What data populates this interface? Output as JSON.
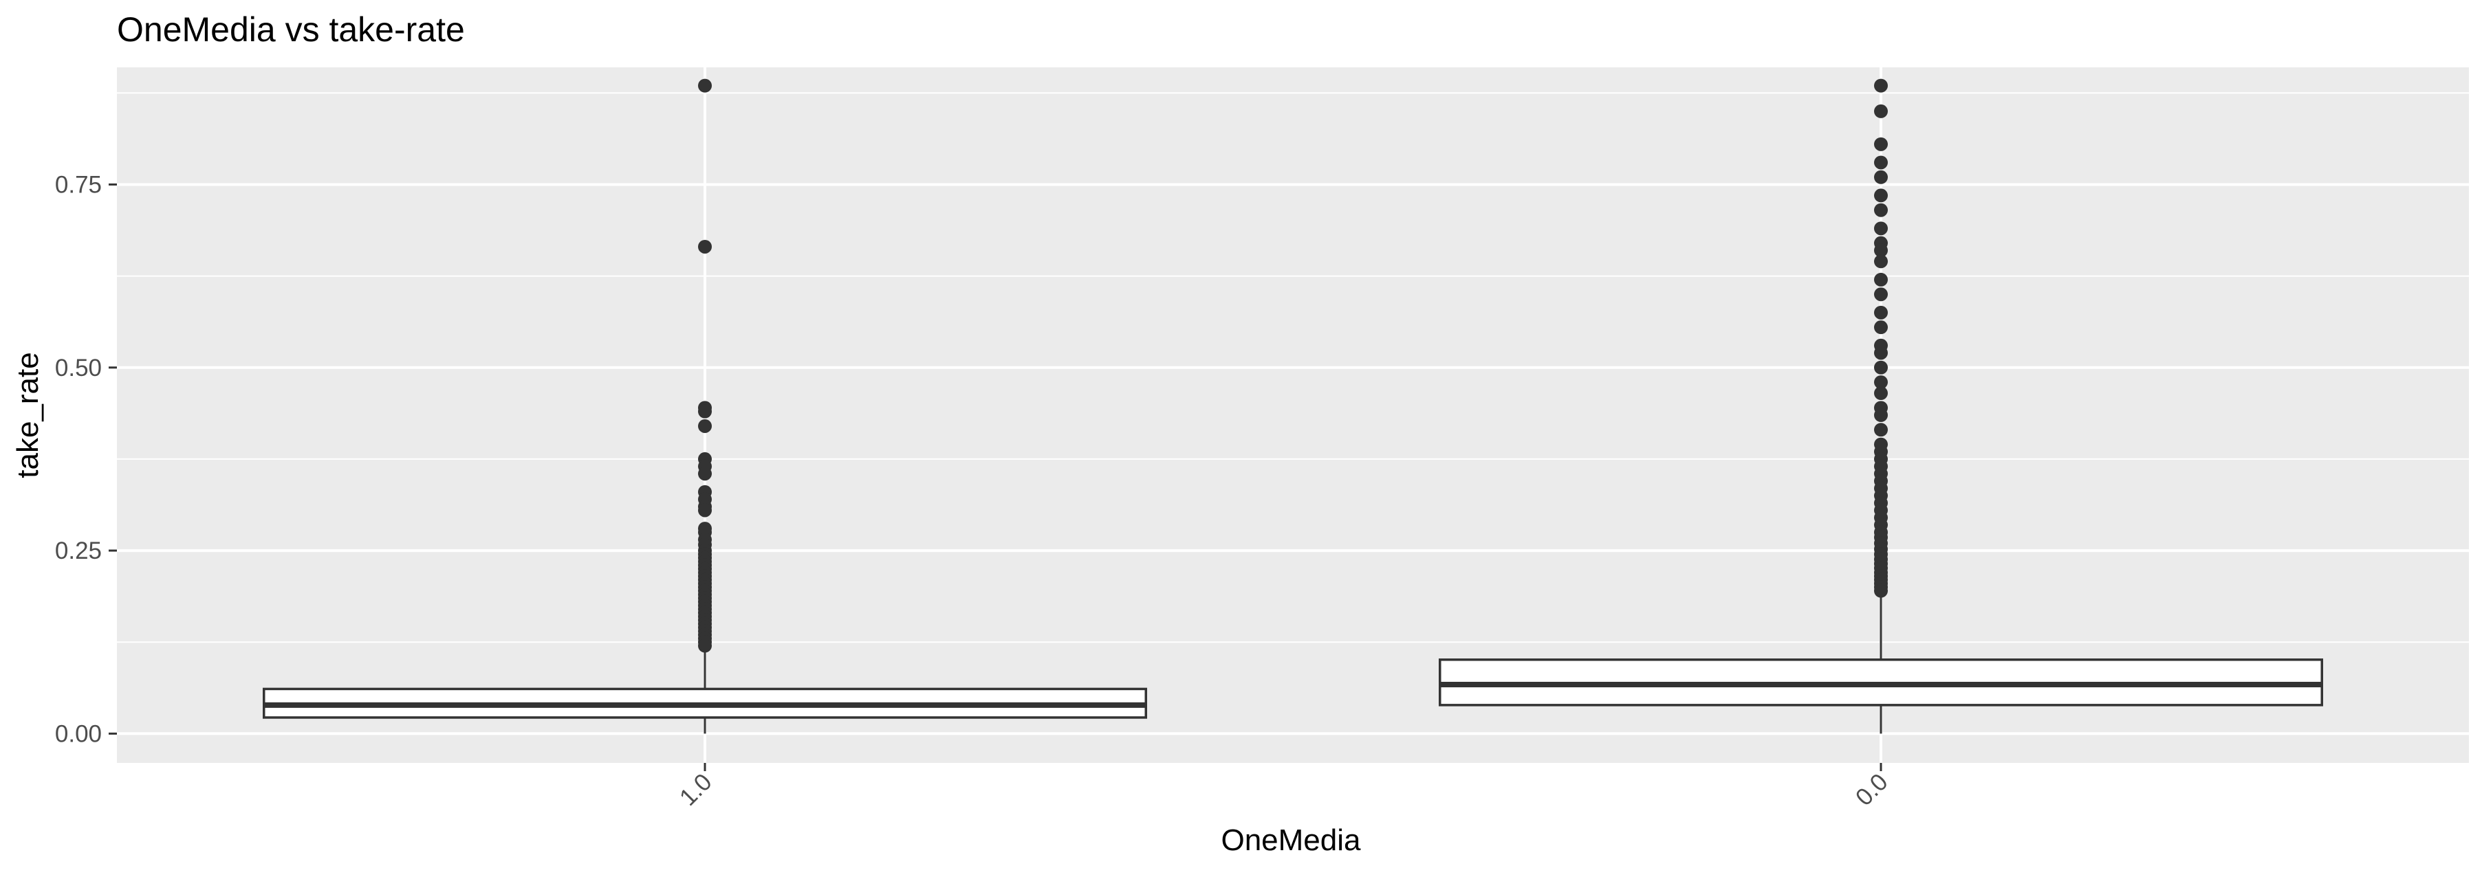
{
  "chart_data": {
    "type": "boxplot",
    "title": "OneMedia vs take-rate",
    "xlabel": "OneMedia",
    "ylabel": "take_rate",
    "ylim": [
      -0.04,
      0.91
    ],
    "yticks": [
      {
        "value": 0.0,
        "label": "0.00"
      },
      {
        "value": 0.25,
        "label": "0.25"
      },
      {
        "value": 0.5,
        "label": "0.50"
      },
      {
        "value": 0.75,
        "label": "0.75"
      }
    ],
    "x_tick_rotation_deg": -45,
    "grid": true,
    "legend": "none",
    "colors": {
      "panel_background": "#ebebeb",
      "grid_line": "#ffffff",
      "box_fill": "#ffffff",
      "box_stroke": "#333333",
      "outlier": "#333333",
      "tick_text": "#4d4d4d"
    },
    "categories": [
      {
        "label": "1.0",
        "whisker_low": 0.0,
        "q1": 0.022,
        "median": 0.039,
        "q3": 0.061,
        "whisker_high": 0.118,
        "outliers": [
          0.885,
          0.665,
          0.445,
          0.44,
          0.42,
          0.375,
          0.365,
          0.355,
          0.33,
          0.32,
          0.31,
          0.305,
          0.28,
          0.275,
          0.265,
          0.258,
          0.25,
          0.245,
          0.24,
          0.235,
          0.23,
          0.225,
          0.22,
          0.215,
          0.21,
          0.205,
          0.2,
          0.195,
          0.19,
          0.185,
          0.18,
          0.175,
          0.17,
          0.165,
          0.16,
          0.155,
          0.15,
          0.145,
          0.14,
          0.135,
          0.13,
          0.125,
          0.12
        ]
      },
      {
        "label": "0.0",
        "whisker_low": 0.0,
        "q1": 0.039,
        "median": 0.067,
        "q3": 0.101,
        "whisker_high": 0.192,
        "outliers": [
          0.885,
          0.85,
          0.805,
          0.78,
          0.76,
          0.735,
          0.715,
          0.69,
          0.67,
          0.66,
          0.645,
          0.62,
          0.6,
          0.575,
          0.555,
          0.53,
          0.52,
          0.5,
          0.48,
          0.465,
          0.445,
          0.435,
          0.415,
          0.395,
          0.385,
          0.375,
          0.365,
          0.355,
          0.345,
          0.335,
          0.325,
          0.315,
          0.305,
          0.295,
          0.285,
          0.275,
          0.268,
          0.26,
          0.252,
          0.245,
          0.238,
          0.232,
          0.226,
          0.22,
          0.215,
          0.21,
          0.205,
          0.2,
          0.195
        ]
      }
    ]
  }
}
